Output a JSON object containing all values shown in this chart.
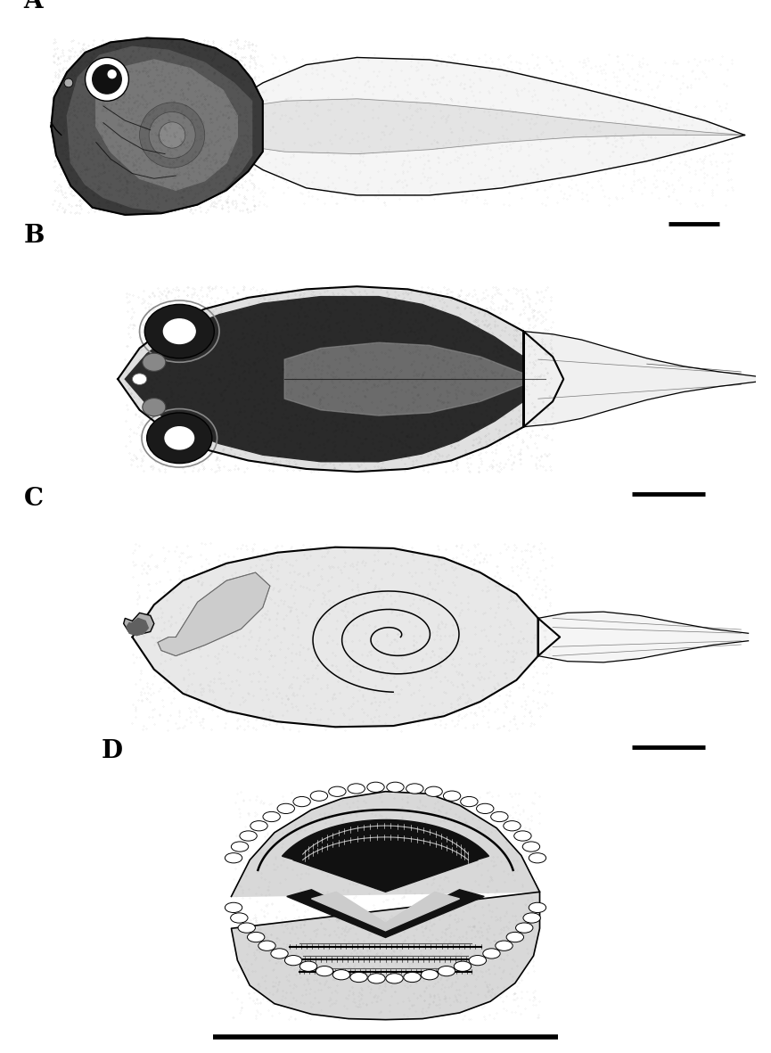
{
  "background_color": "#ffffff",
  "label_A": "A",
  "label_B": "B",
  "label_C": "C",
  "label_D": "D",
  "label_fontsize": 20,
  "label_fontweight": "bold"
}
